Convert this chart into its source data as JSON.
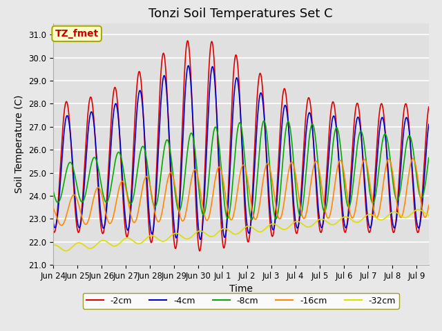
{
  "title": "Tonzi Soil Temperatures Set C",
  "xlabel": "Time",
  "ylabel": "Soil Temperature (C)",
  "ylim": [
    21.0,
    31.5
  ],
  "yticks": [
    21.0,
    22.0,
    23.0,
    24.0,
    25.0,
    26.0,
    27.0,
    28.0,
    29.0,
    30.0,
    31.0
  ],
  "xtick_labels": [
    "Jun 24",
    "Jun 25",
    "Jun 26",
    "Jun 27",
    "Jun 28",
    "Jun 29",
    "Jun 30",
    "Jul 1",
    "Jul 2",
    "Jul 3",
    "Jul 4",
    "Jul 5",
    "Jul 6",
    "Jul 7",
    "Jul 8",
    "Jul 9"
  ],
  "series": [
    {
      "label": "-2cm",
      "color": "#dd0000",
      "lw": 1.2
    },
    {
      "label": "-4cm",
      "color": "#0000cc",
      "lw": 1.2
    },
    {
      "label": "-8cm",
      "color": "#00aa00",
      "lw": 1.2
    },
    {
      "label": "-16cm",
      "color": "#ff8800",
      "lw": 1.2
    },
    {
      "label": "-32cm",
      "color": "#dddd00",
      "lw": 1.2
    }
  ],
  "legend_box_color": "#ffffff",
  "legend_box_edge": "#888800",
  "annotation_text": "TZ_fmet",
  "annotation_color": "#cc0000",
  "annotation_bg": "#ffffcc",
  "annotation_edge": "#aaaa00",
  "plot_bg_color": "#e8e8e8",
  "ax_bg_color": "#e0e0e0",
  "title_fontsize": 13,
  "axis_fontsize": 10,
  "tick_fontsize": 8.5
}
